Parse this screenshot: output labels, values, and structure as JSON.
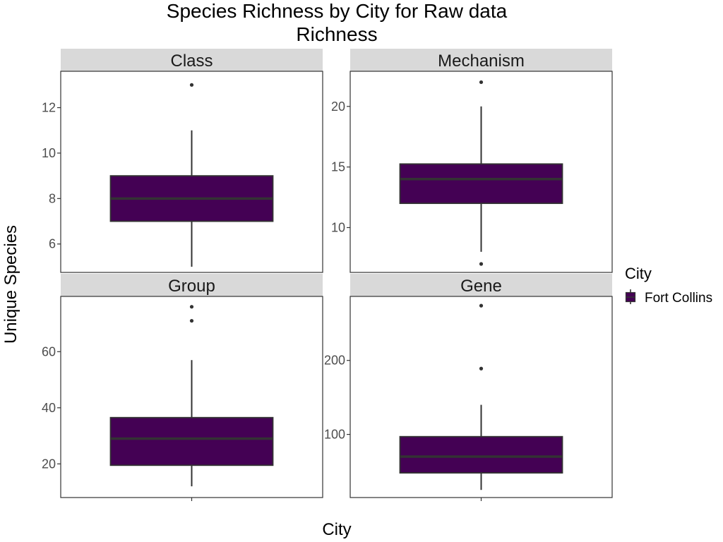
{
  "chart_data": {
    "type": "box",
    "title_lines": [
      "Species Richness by City for Raw data",
      "Richness"
    ],
    "xlabel": "City",
    "ylabel": "Unique Species",
    "legend": {
      "title": "City",
      "entries": [
        "Fort Collins"
      ],
      "placement": "right"
    },
    "grid": false,
    "colors": {
      "fill": "#440154",
      "line": "#333333",
      "strip": "#d9d9d9"
    },
    "panels": [
      {
        "name": "Class",
        "ylim": [
          4.75,
          13.6
        ],
        "yticks": [
          6,
          8,
          10,
          12
        ],
        "box": {
          "q1": 7,
          "median": 8,
          "q3": 9,
          "whisker_low": 5,
          "whisker_high": 11
        },
        "outliers": [
          13
        ]
      },
      {
        "name": "Mechanism",
        "ylim": [
          6.3,
          22.9
        ],
        "yticks": [
          10,
          15,
          20
        ],
        "box": {
          "q1": 12,
          "median": 14,
          "q3": 15.25,
          "whisker_low": 8,
          "whisker_high": 20
        },
        "outliers": [
          22,
          7
        ]
      },
      {
        "name": "Group",
        "ylim": [
          8.0,
          79.7
        ],
        "yticks": [
          20,
          40,
          60
        ],
        "box": {
          "q1": 19.5,
          "median": 29,
          "q3": 36.5,
          "whisker_low": 12,
          "whisker_high": 57
        },
        "outliers": [
          76,
          71
        ]
      },
      {
        "name": "Gene",
        "ylim": [
          14.7,
          286.5
        ],
        "yticks": [
          100,
          200
        ],
        "box": {
          "q1": 48,
          "median": 70,
          "q3": 97,
          "whisker_low": 25,
          "whisker_high": 140
        },
        "outliers": [
          274,
          189
        ]
      }
    ]
  }
}
